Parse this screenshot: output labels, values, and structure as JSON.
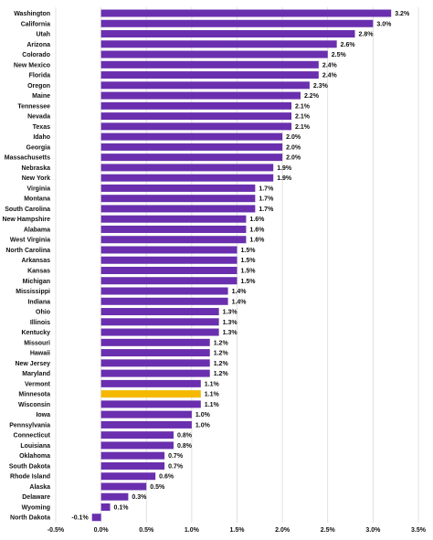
{
  "chart_data": {
    "type": "bar",
    "orientation": "horizontal",
    "title": "",
    "xlabel": "",
    "ylabel": "",
    "xlim": [
      -0.5,
      3.5
    ],
    "x_ticks": [
      -0.5,
      0.0,
      0.5,
      1.0,
      1.5,
      2.0,
      2.5,
      3.0,
      3.5
    ],
    "x_tick_labels": [
      "-0.5%",
      "0.0%",
      "0.5%",
      "1.0%",
      "1.5%",
      "2.0%",
      "2.5%",
      "3.0%",
      "3.5%"
    ],
    "grid": "vertical",
    "default_bar_color": "#6a2fae",
    "highlight_color": "#f5b800",
    "highlight_category": "Minnesota",
    "categories": [
      "Washington",
      "California",
      "Utah",
      "Arizona",
      "Colorado",
      "New Mexico",
      "Florida",
      "Oregon",
      "Maine",
      "Tennessee",
      "Nevada",
      "Texas",
      "Idaho",
      "Georgia",
      "Massachusetts",
      "Nebraska",
      "New York",
      "Virginia",
      "Montana",
      "South Carolina",
      "New Hampshire",
      "Alabama",
      "West Virginia",
      "North Carolina",
      "Arkansas",
      "Kansas",
      "Michigan",
      "Mississippi",
      "Indiana",
      "Ohio",
      "Illinois",
      "Kentucky",
      "Missouri",
      "Hawaii",
      "New Jersey",
      "Maryland",
      "Vermont",
      "Minnesota",
      "Wisconsin",
      "Iowa",
      "Pennsylvania",
      "Connecticut",
      "Louisiana",
      "Oklahoma",
      "South Dakota",
      "Rhode Island",
      "Alaska",
      "Delaware",
      "Wyoming",
      "North Dakota"
    ],
    "values": [
      3.2,
      3.0,
      2.8,
      2.6,
      2.5,
      2.4,
      2.4,
      2.3,
      2.2,
      2.1,
      2.1,
      2.1,
      2.0,
      2.0,
      2.0,
      1.9,
      1.9,
      1.7,
      1.7,
      1.7,
      1.6,
      1.6,
      1.6,
      1.5,
      1.5,
      1.5,
      1.5,
      1.4,
      1.4,
      1.3,
      1.3,
      1.3,
      1.2,
      1.2,
      1.2,
      1.2,
      1.1,
      1.1,
      1.1,
      1.0,
      1.0,
      0.8,
      0.8,
      0.7,
      0.7,
      0.6,
      0.5,
      0.3,
      0.1,
      -0.1
    ],
    "value_labels": [
      "3.2%",
      "3.0%",
      "2.8%",
      "2.6%",
      "2.5%",
      "2.4%",
      "2.4%",
      "2.3%",
      "2.2%",
      "2.1%",
      "2.1%",
      "2.1%",
      "2.0%",
      "2.0%",
      "2.0%",
      "1.9%",
      "1.9%",
      "1.7%",
      "1.7%",
      "1.7%",
      "1.6%",
      "1.6%",
      "1.6%",
      "1.5%",
      "1.5%",
      "1.5%",
      "1.5%",
      "1.4%",
      "1.4%",
      "1.3%",
      "1.3%",
      "1.3%",
      "1.2%",
      "1.2%",
      "1.2%",
      "1.2%",
      "1.1%",
      "1.1%",
      "1.1%",
      "1.0%",
      "1.0%",
      "0.8%",
      "0.8%",
      "0.7%",
      "0.7%",
      "0.6%",
      "0.5%",
      "0.3%",
      "0.1%",
      "-0.1%"
    ]
  }
}
